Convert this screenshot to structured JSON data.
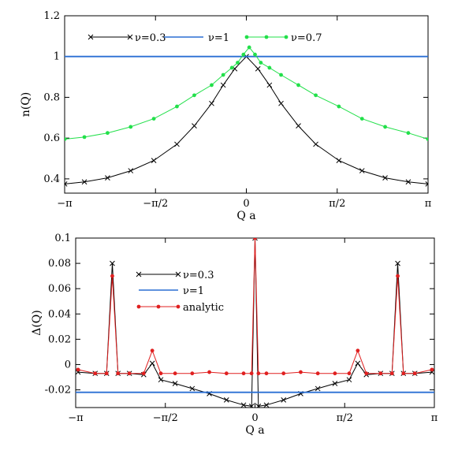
{
  "chart_data": [
    {
      "type": "line",
      "xlabel": "Q a",
      "ylabel": "n(Q)",
      "xlim": [
        -3.14159,
        3.14159
      ],
      "ylim": [
        0.33,
        1.2
      ],
      "x_ticks": [
        {
          "value": -3.14159,
          "label": "−π"
        },
        {
          "value": -1.5708,
          "label": "−π/2"
        },
        {
          "value": 0,
          "label": "0"
        },
        {
          "value": 1.5708,
          "label": "π/2"
        },
        {
          "value": 3.14159,
          "label": "π"
        }
      ],
      "y_ticks": [
        {
          "value": 0.4,
          "label": "0.4"
        },
        {
          "value": 0.6,
          "label": "0.6"
        },
        {
          "value": 0.8,
          "label": "0.8"
        },
        {
          "value": 1.0,
          "label": "1"
        },
        {
          "value": 1.2,
          "label": "1.2"
        }
      ],
      "legend_placement": "top",
      "series": [
        {
          "name": "ν=0.3",
          "color": "#000000",
          "marker": "x",
          "x": [
            -3.14,
            -2.8,
            -2.4,
            -2.0,
            -1.6,
            -1.2,
            -0.9,
            -0.6,
            -0.4,
            -0.2,
            0.0,
            0.2,
            0.4,
            0.6,
            0.9,
            1.2,
            1.6,
            2.0,
            2.4,
            2.8,
            3.14
          ],
          "y": [
            0.375,
            0.385,
            0.405,
            0.44,
            0.49,
            0.57,
            0.66,
            0.77,
            0.86,
            0.94,
            1.0,
            0.94,
            0.86,
            0.77,
            0.66,
            0.57,
            0.49,
            0.44,
            0.405,
            0.385,
            0.375
          ]
        },
        {
          "name": "ν=1",
          "color": "#2a6fd4",
          "marker": "none",
          "x": [
            -3.14159,
            3.14159
          ],
          "y": [
            1.0,
            1.0
          ]
        },
        {
          "name": "ν=0.7",
          "color": "#22e04a",
          "marker": "dot",
          "x": [
            -3.14,
            -2.8,
            -2.4,
            -2.0,
            -1.6,
            -1.2,
            -0.9,
            -0.6,
            -0.4,
            -0.25,
            -0.15,
            -0.05,
            0.05,
            0.15,
            0.25,
            0.4,
            0.6,
            0.9,
            1.2,
            1.6,
            2.0,
            2.4,
            2.8,
            3.14
          ],
          "y": [
            0.595,
            0.605,
            0.625,
            0.655,
            0.695,
            0.755,
            0.81,
            0.86,
            0.91,
            0.945,
            0.97,
            1.01,
            1.045,
            1.01,
            0.97,
            0.945,
            0.91,
            0.86,
            0.81,
            0.755,
            0.695,
            0.655,
            0.625,
            0.595
          ]
        }
      ]
    },
    {
      "type": "line",
      "xlabel": "Q a",
      "ylabel": "Δ(Q)",
      "xlim": [
        -3.14159,
        3.14159
      ],
      "ylim": [
        -0.034,
        0.1
      ],
      "x_ticks": [
        {
          "value": -3.14159,
          "label": "−π"
        },
        {
          "value": -1.5708,
          "label": "−π/2"
        },
        {
          "value": 0,
          "label": "0"
        },
        {
          "value": 1.5708,
          "label": "π/2"
        },
        {
          "value": 3.14159,
          "label": "π"
        }
      ],
      "y_ticks": [
        {
          "value": -0.02,
          "label": "-0.02"
        },
        {
          "value": 0.0,
          "label": "0"
        },
        {
          "value": 0.02,
          "label": "0.02"
        },
        {
          "value": 0.04,
          "label": "0.04"
        },
        {
          "value": 0.06,
          "label": "0.06"
        },
        {
          "value": 0.08,
          "label": "0.08"
        },
        {
          "value": 0.1,
          "label": "0.1"
        }
      ],
      "legend_placement": "top-left",
      "series": [
        {
          "name": "ν=0.3",
          "color": "#000000",
          "marker": "x",
          "x": [
            -3.1,
            -2.8,
            -2.6,
            -2.5,
            -2.4,
            -2.2,
            -1.95,
            -1.8,
            -1.65,
            -1.4,
            -1.1,
            -0.8,
            -0.5,
            -0.2,
            -0.06,
            0.0,
            0.06,
            0.2,
            0.5,
            0.8,
            1.1,
            1.4,
            1.65,
            1.8,
            1.95,
            2.2,
            2.4,
            2.5,
            2.6,
            2.8,
            3.1
          ],
          "y": [
            -0.006,
            -0.007,
            -0.007,
            0.08,
            -0.007,
            -0.007,
            -0.008,
            0.001,
            -0.012,
            -0.015,
            -0.019,
            -0.023,
            -0.028,
            -0.032,
            -0.033,
            0.1,
            -0.033,
            -0.032,
            -0.028,
            -0.023,
            -0.019,
            -0.015,
            -0.012,
            0.001,
            -0.008,
            -0.007,
            -0.007,
            0.08,
            -0.007,
            -0.007,
            -0.006
          ]
        },
        {
          "name": "ν=1",
          "color": "#2a6fd4",
          "marker": "none",
          "x": [
            -3.14159,
            3.14159
          ],
          "y": [
            -0.022,
            -0.022
          ]
        },
        {
          "name": "analytic",
          "color": "#e02020",
          "marker": "dot",
          "x": [
            -3.1,
            -2.8,
            -2.6,
            -2.5,
            -2.4,
            -2.2,
            -1.95,
            -1.8,
            -1.65,
            -1.4,
            -1.1,
            -0.8,
            -0.5,
            -0.2,
            -0.06,
            0.0,
            0.06,
            0.2,
            0.5,
            0.8,
            1.1,
            1.4,
            1.65,
            1.8,
            1.95,
            2.2,
            2.4,
            2.5,
            2.6,
            2.8,
            3.1
          ],
          "y": [
            -0.004,
            -0.007,
            -0.007,
            0.07,
            -0.007,
            -0.007,
            -0.007,
            0.011,
            -0.007,
            -0.007,
            -0.007,
            -0.006,
            -0.007,
            -0.007,
            -0.007,
            0.1,
            -0.007,
            -0.007,
            -0.007,
            -0.006,
            -0.007,
            -0.007,
            -0.007,
            0.011,
            -0.007,
            -0.007,
            -0.007,
            0.07,
            -0.007,
            -0.007,
            -0.004
          ]
        }
      ]
    }
  ]
}
